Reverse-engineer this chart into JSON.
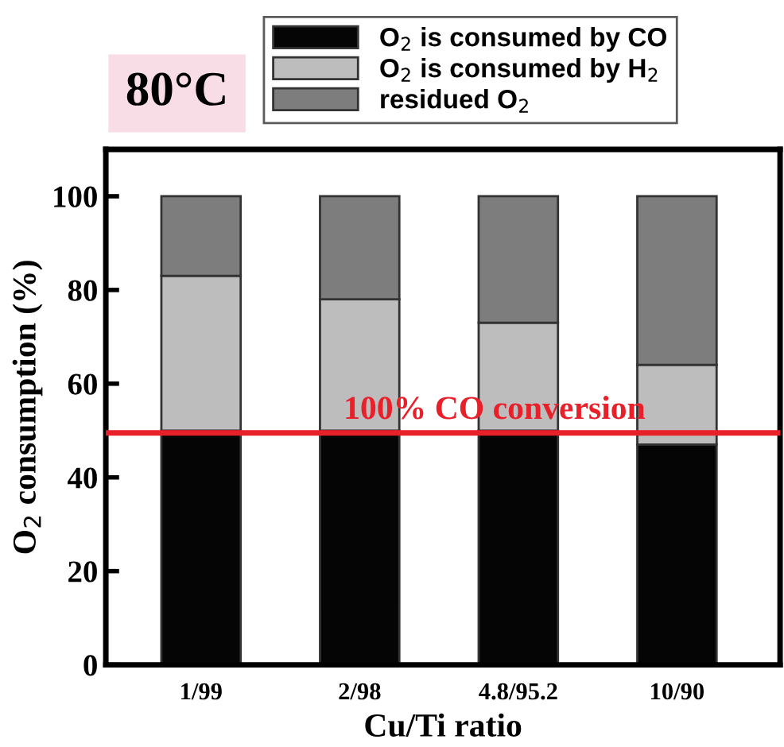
{
  "chart_data": {
    "type": "bar",
    "stacked": true,
    "xlabel": "Cu/Ti ratio",
    "ylabel": "O$_{2}$ consumption (%)",
    "categories": [
      "1/99",
      "2/98",
      "4.8/95.2",
      "10/90"
    ],
    "series": [
      {
        "name": "O$_{2}$ is consumed by CO",
        "color": "#050505",
        "values": [
          50,
          50,
          50,
          47
        ]
      },
      {
        "name": "O$_{2}$ is consumed by H$_{2}$",
        "color": "#bdbdbd",
        "values": [
          33,
          28,
          23,
          17
        ]
      },
      {
        "name": "residued O$_{2}$",
        "color": "#7d7d7d",
        "values": [
          17,
          22,
          27,
          36
        ]
      }
    ],
    "ylim": [
      0,
      110
    ],
    "yticks": [
      0,
      20,
      40,
      60,
      80,
      100
    ],
    "ref_lines": [
      {
        "axis": "y",
        "value": 49.5,
        "label": "100% CO conversion",
        "color": "#e8202a"
      }
    ],
    "annotations": [
      "80°C"
    ],
    "legend": "top",
    "grid": false
  }
}
